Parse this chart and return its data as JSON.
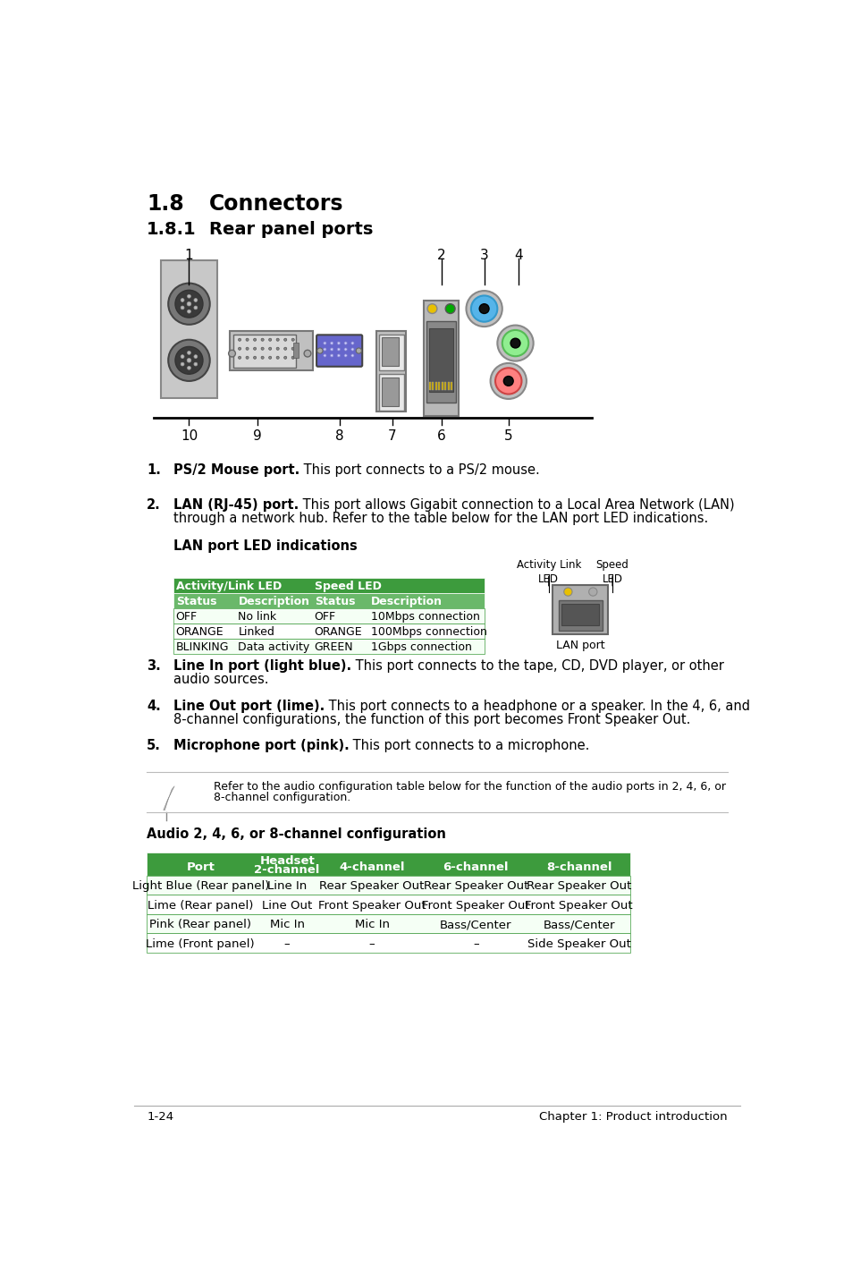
{
  "title1": "1.8",
  "title1_text": "Connectors",
  "title2": "1.8.1",
  "title2_text": "Rear panel ports",
  "green_header": "#3d9b3d",
  "green_mid": "#6ab86a",
  "green_light": "#c8e6c8",
  "lan_table_rows": [
    [
      "OFF",
      "No link",
      "OFF",
      "10Mbps connection"
    ],
    [
      "ORANGE",
      "Linked",
      "ORANGE",
      "100Mbps connection"
    ],
    [
      "BLINKING",
      "Data activity",
      "GREEN",
      "1Gbps connection"
    ]
  ],
  "note_text1": "Refer to the audio configuration table below for the function of the audio ports in 2, 4, 6, or",
  "note_text2": "8-channel configuration.",
  "audio_title": "Audio 2, 4, 6, or 8-channel configuration",
  "audio_headers": [
    "Port",
    "Headset\n2-channel",
    "4-channel",
    "6-channel",
    "8-channel"
  ],
  "audio_rows": [
    [
      "Light Blue (Rear panel)",
      "Line In",
      "Rear Speaker Out",
      "Rear Speaker Out",
      "Rear Speaker Out"
    ],
    [
      "Lime (Rear panel)",
      "Line Out",
      "Front Speaker Out",
      "Front Speaker Out",
      "Front Speaker Out"
    ],
    [
      "Pink (Rear panel)",
      "Mic In",
      "Mic In",
      "Bass/Center",
      "Bass/Center"
    ],
    [
      "Lime (Front panel)",
      "–",
      "–",
      "–",
      "Side Speaker Out"
    ]
  ],
  "footer_left": "1-24",
  "footer_right": "Chapter 1: Product introduction"
}
